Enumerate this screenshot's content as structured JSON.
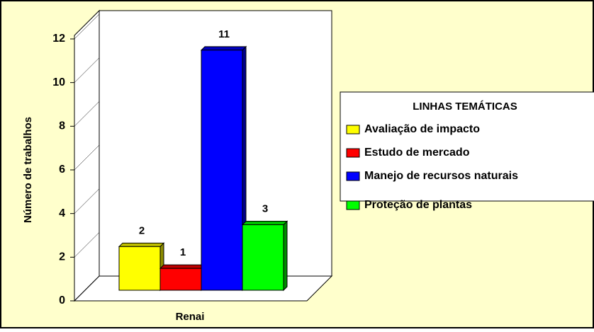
{
  "chart_data": {
    "type": "bar3d",
    "y_label": "Número de trabalhos",
    "categories": [
      "Renai"
    ],
    "legend_title": "LINHAS TEMÁTICAS",
    "series": [
      {
        "name": "Avaliação de impacto",
        "color": "#ffff00",
        "values": [
          2
        ]
      },
      {
        "name": "Estudo de mercado",
        "color": "#ff0000",
        "values": [
          1
        ]
      },
      {
        "name": "Manejo de recursos naturais",
        "color": "#0000ff",
        "values": [
          11
        ]
      },
      {
        "name": "Proteção de plantas",
        "color": "#00ff00",
        "values": [
          3
        ]
      }
    ],
    "ylim": [
      0,
      12
    ],
    "yticks": [
      0,
      2,
      4,
      6,
      8,
      10,
      12
    ],
    "legend": "right"
  }
}
